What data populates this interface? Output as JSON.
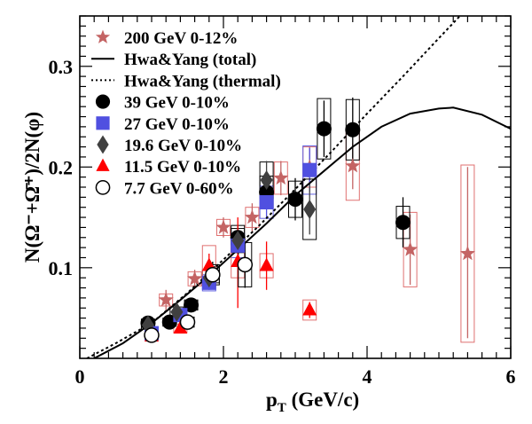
{
  "chart_data": {
    "type": "scatter",
    "xlabel": {
      "main": "p",
      "sub": "T",
      "rest": " (GeV/c)"
    },
    "ylabel": "N(Ω⁻+Ω̄⁺)/2N(φ)",
    "xlim": [
      0,
      6
    ],
    "ylim": [
      0.01,
      0.35
    ],
    "x_ticks": [
      0,
      2,
      4,
      6
    ],
    "y_ticks": [
      0.1,
      0.2,
      0.3
    ],
    "y_tick_labels": [
      "0.1",
      "0.2",
      "0.3"
    ],
    "legend_position": "top-left",
    "series": [
      {
        "name": "200  GeV 0-12%",
        "marker": "star",
        "color": "#c46464",
        "points": [
          {
            "x": 1.2,
            "y": 0.068,
            "lo": 0.058,
            "hi": 0.078,
            "sys": 0.006
          },
          {
            "x": 1.6,
            "y": 0.089,
            "lo": 0.08,
            "hi": 0.098,
            "sys": 0.007
          },
          {
            "x": 2.0,
            "y": 0.14,
            "lo": 0.13,
            "hi": 0.15,
            "sys": 0.008
          },
          {
            "x": 2.4,
            "y": 0.15,
            "lo": 0.136,
            "hi": 0.164,
            "sys": 0.01
          },
          {
            "x": 2.8,
            "y": 0.189,
            "lo": 0.172,
            "hi": 0.206,
            "sys": 0.016
          },
          {
            "x": 3.2,
            "y": 0.2,
            "lo": 0.178,
            "hi": 0.22,
            "sys": 0.02
          },
          {
            "x": 3.8,
            "y": 0.201,
            "lo": 0.178,
            "hi": 0.224,
            "sys": 0.034
          },
          {
            "x": 4.6,
            "y": 0.118,
            "lo": 0.083,
            "hi": 0.153,
            "sys": 0.037
          },
          {
            "x": 5.4,
            "y": 0.114,
            "lo": 0.03,
            "hi": 0.2,
            "sys": 0.088
          }
        ]
      },
      {
        "name": "39    GeV 0-10%",
        "marker": "circle",
        "color": "#000000",
        "points": [
          {
            "x": 0.95,
            "y": 0.045,
            "lo": 0.041,
            "hi": 0.049,
            "sys": 0.004
          },
          {
            "x": 1.25,
            "y": 0.046,
            "lo": 0.042,
            "hi": 0.05,
            "sys": 0.004
          },
          {
            "x": 1.55,
            "y": 0.063,
            "lo": 0.058,
            "hi": 0.068,
            "sys": 0.005
          },
          {
            "x": 1.85,
            "y": 0.093,
            "lo": 0.086,
            "hi": 0.1,
            "sys": 0.008
          },
          {
            "x": 2.2,
            "y": 0.13,
            "lo": 0.118,
            "hi": 0.142,
            "sys": 0.012
          },
          {
            "x": 2.6,
            "y": 0.175,
            "lo": 0.158,
            "hi": 0.192,
            "sys": 0.016
          },
          {
            "x": 3.0,
            "y": 0.168,
            "lo": 0.147,
            "hi": 0.189,
            "sys": 0.018
          },
          {
            "x": 3.4,
            "y": 0.238,
            "lo": 0.21,
            "hi": 0.266,
            "sys": 0.03
          },
          {
            "x": 3.8,
            "y": 0.237,
            "lo": 0.205,
            "hi": 0.269,
            "sys": 0.03
          },
          {
            "x": 4.5,
            "y": 0.145,
            "lo": 0.12,
            "hi": 0.17,
            "sys": 0.016
          }
        ]
      },
      {
        "name": "27    GeV 0-10%",
        "marker": "square",
        "color": "#5050e0",
        "points": [
          {
            "x": 1.0,
            "y": 0.035,
            "lo": 0.031,
            "hi": 0.039,
            "sys": 0.004
          },
          {
            "x": 1.4,
            "y": 0.053,
            "lo": 0.048,
            "hi": 0.058,
            "sys": 0.005
          },
          {
            "x": 1.8,
            "y": 0.085,
            "lo": 0.078,
            "hi": 0.092,
            "sys": 0.008
          },
          {
            "x": 2.2,
            "y": 0.122,
            "lo": 0.111,
            "hi": 0.133,
            "sys": 0.012
          },
          {
            "x": 2.6,
            "y": 0.165,
            "lo": 0.149,
            "hi": 0.181,
            "sys": 0.016
          },
          {
            "x": 3.2,
            "y": 0.197,
            "lo": 0.175,
            "hi": 0.219,
            "sys": 0.024
          }
        ]
      },
      {
        "name": "19.6  GeV 0-10%",
        "marker": "diamond",
        "color": "#404040",
        "points": [
          {
            "x": 0.95,
            "y": 0.043,
            "lo": 0.039,
            "hi": 0.047,
            "sys": 0.004
          },
          {
            "x": 1.35,
            "y": 0.056,
            "lo": 0.051,
            "hi": 0.061,
            "sys": 0.005
          },
          {
            "x": 1.8,
            "y": 0.09,
            "lo": 0.082,
            "hi": 0.098,
            "sys": 0.008
          },
          {
            "x": 2.2,
            "y": 0.127,
            "lo": 0.115,
            "hi": 0.139,
            "sys": 0.012
          },
          {
            "x": 2.6,
            "y": 0.187,
            "lo": 0.168,
            "hi": 0.206,
            "sys": 0.018
          },
          {
            "x": 3.2,
            "y": 0.158,
            "lo": 0.133,
            "hi": 0.183,
            "sys": 0.03
          }
        ]
      },
      {
        "name": "11.5  GeV 0-10%",
        "marker": "triangle",
        "color": "#ff0000",
        "points": [
          {
            "x": 1.0,
            "y": 0.032,
            "lo": 0.027,
            "hi": 0.037,
            "sys": 0.004
          },
          {
            "x": 1.4,
            "y": 0.04,
            "lo": 0.035,
            "hi": 0.045,
            "sys": 0.004
          },
          {
            "x": 1.8,
            "y": 0.102,
            "lo": 0.09,
            "hi": 0.114,
            "sys": 0.02
          },
          {
            "x": 2.2,
            "y": 0.106,
            "lo": 0.06,
            "hi": 0.15,
            "sys": 0.016
          },
          {
            "x": 2.6,
            "y": 0.102,
            "lo": 0.078,
            "hi": 0.126,
            "sys": 0.012
          },
          {
            "x": 3.2,
            "y": 0.058,
            "lo": 0.05,
            "hi": 0.066,
            "sys": 0.01
          }
        ]
      },
      {
        "name": "7.7  GeV 0-60%",
        "marker": "open-circle",
        "color": "#000000",
        "points": [
          {
            "x": 1.0,
            "y": 0.033,
            "lo": 0.029,
            "hi": 0.037,
            "sys": 0.004
          },
          {
            "x": 1.5,
            "y": 0.046,
            "lo": 0.04,
            "hi": 0.052,
            "sys": 0.005
          },
          {
            "x": 1.85,
            "y": 0.093,
            "lo": 0.08,
            "hi": 0.106,
            "sys": 0.01
          },
          {
            "x": 2.3,
            "y": 0.103,
            "lo": 0.08,
            "hi": 0.126,
            "sys": 0.022
          }
        ]
      }
    ],
    "curves": [
      {
        "name": "Hwa&Yang (total)",
        "style": "solid",
        "color": "#000000",
        "x": [
          0.2,
          0.6,
          1.0,
          1.4,
          1.8,
          2.2,
          2.6,
          3.0,
          3.4,
          3.8,
          4.2,
          4.6,
          5.0,
          5.2,
          5.6,
          6.0
        ],
        "y": [
          0.01,
          0.025,
          0.045,
          0.068,
          0.092,
          0.118,
          0.144,
          0.172,
          0.196,
          0.22,
          0.24,
          0.253,
          0.258,
          0.259,
          0.252,
          0.238
        ]
      },
      {
        "name": "Hwa&Yang (thermal)",
        "style": "dotted",
        "color": "#000000",
        "x": [
          0.1,
          0.5,
          1.0,
          1.5,
          2.0,
          2.5,
          3.0,
          3.5,
          4.0,
          4.5,
          5.0,
          5.4
        ],
        "y": [
          0.01,
          0.025,
          0.045,
          0.075,
          0.108,
          0.142,
          0.178,
          0.215,
          0.253,
          0.29,
          0.328,
          0.358
        ]
      }
    ],
    "legend": [
      {
        "label": "200  GeV 0-12%",
        "marker": "star",
        "color": "#c46464"
      },
      {
        "label": "Hwa&Yang (total)",
        "marker": "solid-line",
        "color": "#000000"
      },
      {
        "label": "Hwa&Yang (thermal)",
        "marker": "dotted-line",
        "color": "#000000"
      },
      {
        "label": "39    GeV 0-10%",
        "marker": "circle",
        "color": "#000000"
      },
      {
        "label": "27    GeV 0-10%",
        "marker": "square",
        "color": "#5050e0"
      },
      {
        "label": "19.6  GeV 0-10%",
        "marker": "diamond",
        "color": "#404040"
      },
      {
        "label": "11.5  GeV 0-10%",
        "marker": "triangle",
        "color": "#ff0000"
      },
      {
        "label": "7.7  GeV 0-60%",
        "marker": "open-circle",
        "color": "#000000"
      }
    ]
  }
}
